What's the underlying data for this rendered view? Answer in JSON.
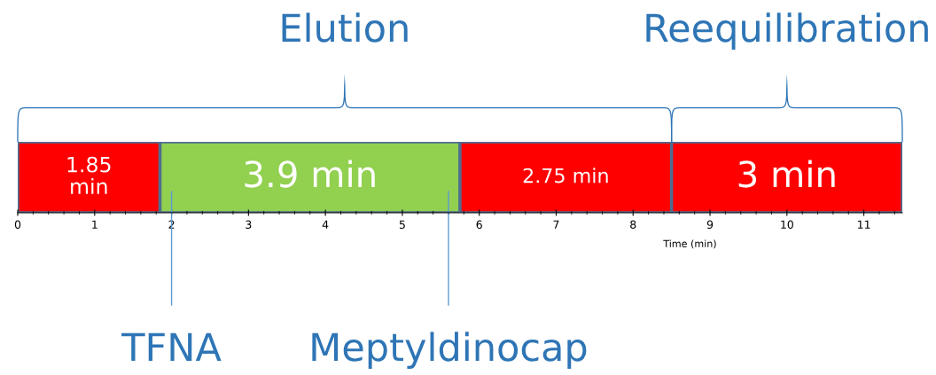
{
  "chart_data": {
    "type": "bar",
    "orientation": "horizontal",
    "stacked": true,
    "categories": [
      null
    ],
    "series": [
      {
        "values": [
          1.85
        ],
        "color": "#ff0000",
        "value_labels": [
          "1.85\nmin"
        ]
      },
      {
        "values": [
          3.9
        ],
        "color": "#92d050",
        "value_labels": [
          "3.9 min"
        ]
      },
      {
        "values": [
          2.75
        ],
        "color": "#ff0000",
        "value_labels": [
          "2.75 min"
        ]
      },
      {
        "values": [
          3
        ],
        "color": "#ff0000",
        "value_labels": [
          "3 min"
        ]
      }
    ],
    "xlabel": "Time (min)",
    "xlim": [
      0,
      11.5
    ],
    "xticks": [
      0,
      1,
      2,
      3,
      4,
      5,
      6,
      7,
      8,
      9,
      10,
      11
    ],
    "ref_lines": [
      {
        "axis": "x",
        "value": 2.0,
        "label": "TFNA",
        "color": "#5b9bd5"
      },
      {
        "axis": "x",
        "value": 5.6,
        "label": "Meptyldinocap",
        "color": "#5b9bd5"
      }
    ],
    "annotations": [
      "Elution",
      "Reequilibration"
    ],
    "grid": false
  }
}
